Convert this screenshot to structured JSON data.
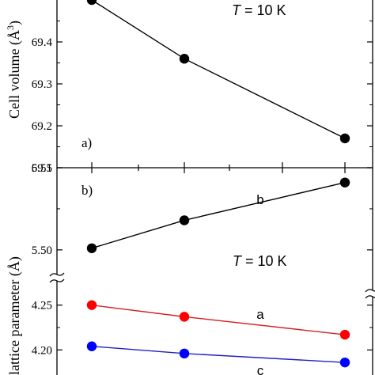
{
  "chart_data": [
    {
      "type": "line",
      "panel_label": "a)",
      "ylabel_main": "Cell volume (Å",
      "ylabel_sup": "3",
      "ylabel_end": ")",
      "annotation_T": "T",
      "annotation_rest": " = 10 K",
      "ylim": [
        69.1,
        69.5
      ],
      "yticks": [
        69.1,
        69.2,
        69.3,
        69.4
      ],
      "ytick_labels": [
        "69.1",
        "69.2",
        "69.3",
        "69.4"
      ],
      "x": [
        1,
        2,
        3
      ],
      "series": [
        {
          "values": [
            69.5,
            69.36,
            69.17
          ],
          "color": "#000000"
        }
      ]
    },
    {
      "type": "line",
      "panel_label": "b)",
      "ylabel": "lattice parameter (Å)",
      "annotation_T": "T",
      "annotation_rest": " = 10 K",
      "axis_break": true,
      "upper_ylim": [
        5.485,
        5.55
      ],
      "upper_yticks": [
        5.5,
        5.55
      ],
      "upper_ytick_labels": [
        "5.50",
        "5.55"
      ],
      "lower_ylim": [
        4.172,
        4.27
      ],
      "lower_yticks": [
        4.2,
        4.25
      ],
      "lower_ytick_labels": [
        "4.20",
        "4.25"
      ],
      "x": [
        1,
        2,
        3
      ],
      "series": [
        {
          "label": "b",
          "values": [
            5.501,
            5.518,
            5.541
          ],
          "color": "#000000",
          "fill": "#000000",
          "axis": "upper"
        },
        {
          "label": "a",
          "values": [
            4.25,
            4.237,
            4.217
          ],
          "color": "#d42020",
          "fill": "#ff0000",
          "axis": "lower"
        },
        {
          "label": "c",
          "values": [
            4.204,
            4.196,
            4.186
          ],
          "color": "#2020c8",
          "fill": "#0000ff",
          "axis": "lower"
        }
      ]
    }
  ]
}
